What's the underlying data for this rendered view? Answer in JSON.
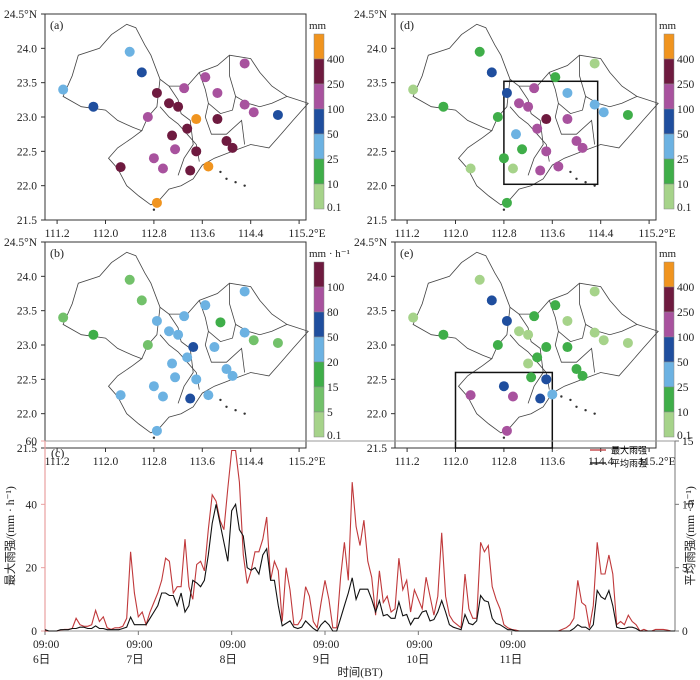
{
  "figure": {
    "map_lat_ticks": [
      "24.5°N",
      "24.0",
      "23.5",
      "23.0",
      "22.5",
      "22.0",
      "21.5"
    ],
    "map_lon_ticks": [
      "111.2",
      "112.0",
      "112.8",
      "113.6",
      "114.4",
      "115.2°E"
    ]
  },
  "colorbars": {
    "total_mm": {
      "unit": "mm",
      "labels": [
        "0.1",
        "10",
        "25",
        "50",
        "100",
        "250",
        "400"
      ],
      "colors": [
        "#a6d38a",
        "#3fae49",
        "#6cb2e2",
        "#1f4e9e",
        "#a8529e",
        "#6e1a3f",
        "#f0941f"
      ]
    },
    "intensity": {
      "unit": "mm · h⁻¹",
      "labels": [
        "0.1",
        "5",
        "15",
        "20",
        "50",
        "80",
        "100"
      ],
      "colors": [
        "#a6d38a",
        "#72c16a",
        "#3fae49",
        "#6cb2e2",
        "#1f4e9e",
        "#a8529e",
        "#6e1a3f"
      ]
    }
  },
  "panels": [
    {
      "id": "a",
      "label": "(a)",
      "colorbar": "total_mm",
      "stations": [
        {
          "lon": 112.4,
          "lat": 23.95,
          "c": 2
        },
        {
          "lon": 112.6,
          "lat": 23.65,
          "c": 3
        },
        {
          "lon": 111.3,
          "lat": 23.4,
          "c": 2
        },
        {
          "lon": 111.8,
          "lat": 23.15,
          "c": 3
        },
        {
          "lon": 112.7,
          "lat": 23.0,
          "c": 4
        },
        {
          "lon": 112.85,
          "lat": 23.35,
          "c": 5
        },
        {
          "lon": 113.05,
          "lat": 23.2,
          "c": 5
        },
        {
          "lon": 113.2,
          "lat": 23.15,
          "c": 5
        },
        {
          "lon": 113.3,
          "lat": 23.42,
          "c": 4
        },
        {
          "lon": 113.65,
          "lat": 23.58,
          "c": 4
        },
        {
          "lon": 113.85,
          "lat": 23.35,
          "c": 4
        },
        {
          "lon": 114.3,
          "lat": 23.78,
          "c": 4
        },
        {
          "lon": 114.3,
          "lat": 23.18,
          "c": 4
        },
        {
          "lon": 114.45,
          "lat": 23.07,
          "c": 4
        },
        {
          "lon": 114.85,
          "lat": 23.03,
          "c": 3
        },
        {
          "lon": 113.5,
          "lat": 22.97,
          "c": 6
        },
        {
          "lon": 113.35,
          "lat": 22.83,
          "c": 5
        },
        {
          "lon": 113.1,
          "lat": 22.73,
          "c": 5
        },
        {
          "lon": 113.15,
          "lat": 22.53,
          "c": 4
        },
        {
          "lon": 113.85,
          "lat": 22.97,
          "c": 5
        },
        {
          "lon": 114.0,
          "lat": 22.65,
          "c": 5
        },
        {
          "lon": 114.1,
          "lat": 22.55,
          "c": 5
        },
        {
          "lon": 113.5,
          "lat": 22.5,
          "c": 5
        },
        {
          "lon": 113.4,
          "lat": 22.22,
          "c": 5
        },
        {
          "lon": 113.7,
          "lat": 22.28,
          "c": 6
        },
        {
          "lon": 112.8,
          "lat": 22.4,
          "c": 4
        },
        {
          "lon": 112.95,
          "lat": 22.25,
          "c": 4
        },
        {
          "lon": 112.25,
          "lat": 22.27,
          "c": 5
        },
        {
          "lon": 112.85,
          "lat": 21.75,
          "c": 6
        }
      ]
    },
    {
      "id": "d",
      "label": "(d)",
      "colorbar": "total_mm",
      "box": {
        "lon": [
          112.8,
          114.35
        ],
        "lat": [
          22.02,
          23.52
        ]
      },
      "stations": [
        {
          "lon": 112.4,
          "lat": 23.95,
          "c": 1
        },
        {
          "lon": 112.6,
          "lat": 23.65,
          "c": 3
        },
        {
          "lon": 111.3,
          "lat": 23.4,
          "c": 0
        },
        {
          "lon": 111.8,
          "lat": 23.15,
          "c": 1
        },
        {
          "lon": 112.7,
          "lat": 23.0,
          "c": 1
        },
        {
          "lon": 112.85,
          "lat": 23.35,
          "c": 3
        },
        {
          "lon": 113.05,
          "lat": 23.2,
          "c": 4
        },
        {
          "lon": 113.2,
          "lat": 23.15,
          "c": 4
        },
        {
          "lon": 113.3,
          "lat": 23.42,
          "c": 4
        },
        {
          "lon": 113.65,
          "lat": 23.58,
          "c": 1
        },
        {
          "lon": 113.85,
          "lat": 23.35,
          "c": 2
        },
        {
          "lon": 114.3,
          "lat": 23.78,
          "c": 0
        },
        {
          "lon": 114.3,
          "lat": 23.18,
          "c": 2
        },
        {
          "lon": 114.45,
          "lat": 23.07,
          "c": 2
        },
        {
          "lon": 114.85,
          "lat": 23.03,
          "c": 1
        },
        {
          "lon": 113.5,
          "lat": 22.97,
          "c": 5
        },
        {
          "lon": 113.35,
          "lat": 22.83,
          "c": 4
        },
        {
          "lon": 113.0,
          "lat": 22.75,
          "c": 2
        },
        {
          "lon": 113.1,
          "lat": 22.53,
          "c": 1
        },
        {
          "lon": 113.85,
          "lat": 22.97,
          "c": 4
        },
        {
          "lon": 114.0,
          "lat": 22.65,
          "c": 4
        },
        {
          "lon": 114.1,
          "lat": 22.55,
          "c": 4
        },
        {
          "lon": 113.5,
          "lat": 22.5,
          "c": 4
        },
        {
          "lon": 113.4,
          "lat": 22.22,
          "c": 4
        },
        {
          "lon": 113.7,
          "lat": 22.28,
          "c": 4
        },
        {
          "lon": 112.8,
          "lat": 22.4,
          "c": 1
        },
        {
          "lon": 112.95,
          "lat": 22.25,
          "c": 0
        },
        {
          "lon": 112.25,
          "lat": 22.25,
          "c": 0
        },
        {
          "lon": 112.85,
          "lat": 21.75,
          "c": 1
        }
      ]
    },
    {
      "id": "b",
      "label": "(b)",
      "colorbar": "intensity",
      "stations": [
        {
          "lon": 112.4,
          "lat": 23.95,
          "c": 1
        },
        {
          "lon": 112.6,
          "lat": 23.65,
          "c": 1
        },
        {
          "lon": 111.3,
          "lat": 23.4,
          "c": 1
        },
        {
          "lon": 111.8,
          "lat": 23.15,
          "c": 2
        },
        {
          "lon": 112.7,
          "lat": 23.0,
          "c": 1
        },
        {
          "lon": 112.85,
          "lat": 23.35,
          "c": 3
        },
        {
          "lon": 113.05,
          "lat": 23.2,
          "c": 3
        },
        {
          "lon": 113.2,
          "lat": 23.15,
          "c": 3
        },
        {
          "lon": 113.3,
          "lat": 23.42,
          "c": 3
        },
        {
          "lon": 113.65,
          "lat": 23.58,
          "c": 3
        },
        {
          "lon": 113.9,
          "lat": 23.33,
          "c": 2
        },
        {
          "lon": 114.3,
          "lat": 23.78,
          "c": 3
        },
        {
          "lon": 114.3,
          "lat": 23.18,
          "c": 3
        },
        {
          "lon": 114.45,
          "lat": 23.07,
          "c": 1
        },
        {
          "lon": 114.85,
          "lat": 23.03,
          "c": 1
        },
        {
          "lon": 113.45,
          "lat": 22.97,
          "c": 4
        },
        {
          "lon": 113.35,
          "lat": 22.82,
          "c": 3
        },
        {
          "lon": 113.1,
          "lat": 22.73,
          "c": 3
        },
        {
          "lon": 113.15,
          "lat": 22.53,
          "c": 3
        },
        {
          "lon": 113.8,
          "lat": 22.97,
          "c": 3
        },
        {
          "lon": 114.0,
          "lat": 22.65,
          "c": 3
        },
        {
          "lon": 114.1,
          "lat": 22.55,
          "c": 3
        },
        {
          "lon": 113.5,
          "lat": 22.5,
          "c": 3
        },
        {
          "lon": 113.4,
          "lat": 22.22,
          "c": 4
        },
        {
          "lon": 113.7,
          "lat": 22.27,
          "c": 3
        },
        {
          "lon": 112.8,
          "lat": 22.4,
          "c": 3
        },
        {
          "lon": 112.95,
          "lat": 22.25,
          "c": 3
        },
        {
          "lon": 112.25,
          "lat": 22.27,
          "c": 3
        },
        {
          "lon": 112.85,
          "lat": 21.75,
          "c": 3
        }
      ]
    },
    {
      "id": "e",
      "label": "(e)",
      "colorbar": "total_mm",
      "box": {
        "lon": [
          112.0,
          113.6
        ],
        "lat": [
          21.5,
          22.6
        ]
      },
      "stations": [
        {
          "lon": 112.4,
          "lat": 23.95,
          "c": 0
        },
        {
          "lon": 112.6,
          "lat": 23.65,
          "c": 3
        },
        {
          "lon": 111.3,
          "lat": 23.4,
          "c": 0
        },
        {
          "lon": 111.8,
          "lat": 23.15,
          "c": 1
        },
        {
          "lon": 112.7,
          "lat": 23.0,
          "c": 1
        },
        {
          "lon": 112.85,
          "lat": 23.35,
          "c": 3
        },
        {
          "lon": 113.05,
          "lat": 23.2,
          "c": 0
        },
        {
          "lon": 113.2,
          "lat": 23.15,
          "c": 0
        },
        {
          "lon": 113.3,
          "lat": 23.42,
          "c": 1
        },
        {
          "lon": 113.65,
          "lat": 23.58,
          "c": 1
        },
        {
          "lon": 113.85,
          "lat": 23.35,
          "c": 0
        },
        {
          "lon": 114.3,
          "lat": 23.78,
          "c": 0
        },
        {
          "lon": 114.3,
          "lat": 23.18,
          "c": 0
        },
        {
          "lon": 114.45,
          "lat": 23.07,
          "c": 0
        },
        {
          "lon": 114.85,
          "lat": 23.03,
          "c": 0
        },
        {
          "lon": 113.5,
          "lat": 22.97,
          "c": 1
        },
        {
          "lon": 113.35,
          "lat": 22.82,
          "c": 1
        },
        {
          "lon": 113.2,
          "lat": 22.73,
          "c": 0
        },
        {
          "lon": 113.25,
          "lat": 22.53,
          "c": 1
        },
        {
          "lon": 113.85,
          "lat": 22.97,
          "c": 1
        },
        {
          "lon": 114.0,
          "lat": 22.65,
          "c": 1
        },
        {
          "lon": 114.1,
          "lat": 22.55,
          "c": 1
        },
        {
          "lon": 113.5,
          "lat": 22.5,
          "c": 3
        },
        {
          "lon": 113.4,
          "lat": 22.22,
          "c": 3
        },
        {
          "lon": 113.6,
          "lat": 22.28,
          "c": 2
        },
        {
          "lon": 112.8,
          "lat": 22.4,
          "c": 3
        },
        {
          "lon": 112.95,
          "lat": 22.25,
          "c": 4
        },
        {
          "lon": 112.25,
          "lat": 22.27,
          "c": 4
        },
        {
          "lon": 112.85,
          "lat": 21.75,
          "c": 4
        }
      ]
    }
  ],
  "chart_data": {
    "type": "line",
    "panel_label": "(c)",
    "xlabel": "时间(BT)",
    "ylabel_left": "最大雨强/(mm · h⁻¹)",
    "ylabel_right": "平均雨强/(mm · h⁻¹)",
    "ylim_left": [
      0,
      60
    ],
    "ylim_right": [
      0,
      15
    ],
    "yticks_left": [
      "0",
      "20",
      "40",
      "60"
    ],
    "yticks_right": [
      "0",
      "5",
      "10",
      "15"
    ],
    "xticks": [
      {
        "time": "09:00",
        "day": "6日"
      },
      {
        "time": "09:00",
        "day": "7日"
      },
      {
        "time": "09:00",
        "day": "8日"
      },
      {
        "time": "09:00",
        "day": "9日"
      },
      {
        "time": "09:00",
        "day": "10日"
      },
      {
        "time": "09:00",
        "day": "11日"
      }
    ],
    "x_hours_total": 162,
    "legend": {
      "position": "top-right",
      "entries": [
        "最大雨强",
        "平均雨强"
      ]
    },
    "series": [
      {
        "name": "最大雨强",
        "axis": "left",
        "color": "#c0393b",
        "values": [
          0,
          0,
          0,
          0,
          0.3,
          0.5,
          0.5,
          0.8,
          4,
          2,
          1.5,
          1.5,
          2,
          6.5,
          3,
          4.5,
          1,
          0.5,
          1,
          1,
          1.5,
          4,
          25,
          12,
          4.5,
          6,
          2,
          6,
          9,
          12,
          16,
          23,
          22,
          12,
          14,
          14,
          29,
          14,
          10,
          21,
          22,
          19,
          32,
          43,
          41,
          35,
          32,
          45,
          57,
          57,
          47,
          24,
          15,
          19,
          25,
          25,
          29,
          36,
          16,
          22,
          19,
          3,
          20,
          13,
          2,
          2,
          4,
          14,
          11,
          3,
          1,
          9,
          16,
          10,
          1,
          1,
          17,
          28,
          16,
          47,
          33,
          27,
          35,
          22,
          17,
          5,
          19,
          9,
          11,
          6,
          7,
          23,
          13,
          16,
          6,
          13,
          10,
          7,
          17,
          11,
          5,
          11,
          31,
          11,
          5,
          3,
          2,
          1,
          18,
          7,
          4,
          4,
          28,
          25,
          27,
          14,
          10,
          7,
          2,
          1,
          0.5,
          0.3,
          0,
          0,
          0,
          0,
          0,
          0,
          0,
          0,
          0,
          0,
          0,
          0.5,
          1,
          2,
          4,
          16,
          9,
          8,
          1,
          8,
          28,
          18,
          18,
          24,
          18,
          2,
          3,
          2,
          5,
          3,
          2,
          0,
          0.5,
          0,
          0,
          0.5,
          0.5,
          0.5,
          0.3,
          0,
          0
        ]
      },
      {
        "name": "平均雨强",
        "axis": "right",
        "color": "#111111",
        "values": [
          0.1,
          0,
          0,
          0,
          0.1,
          0.1,
          0.1,
          0.2,
          0.2,
          0.3,
          0.3,
          0.2,
          0.2,
          0.4,
          0.2,
          0.2,
          0.1,
          0.1,
          0.1,
          0.1,
          0.2,
          0.3,
          1.1,
          0.5,
          0.5,
          0.5,
          0.5,
          1,
          1.5,
          2,
          3,
          3,
          2.8,
          2.8,
          2,
          3,
          1.5,
          2,
          4,
          3.8,
          3.5,
          4,
          6,
          8.5,
          10,
          8.5,
          7,
          5.5,
          9.5,
          10,
          8,
          7.5,
          5,
          4.8,
          5,
          4.5,
          6,
          6.5,
          4,
          4,
          2,
          0.4,
          0.6,
          0.8,
          0.3,
          0.2,
          0.3,
          0.8,
          0.5,
          0.2,
          0,
          0.5,
          0.8,
          0.5,
          0,
          0,
          1,
          2,
          3,
          4.2,
          2.5,
          3.3,
          3.3,
          3.3,
          2.5,
          1.5,
          2.4,
          1.2,
          1.3,
          1,
          1,
          2.3,
          1.2,
          1.3,
          0.5,
          1,
          1,
          1.5,
          1.6,
          0.8,
          0.9,
          1.5,
          2.4,
          1.5,
          0.5,
          0.3,
          0.2,
          0.1,
          1.3,
          0.6,
          0.5,
          0.8,
          2.8,
          2.4,
          2.3,
          1,
          0.6,
          0.5,
          0.3,
          0.1,
          0.1,
          0,
          0,
          0,
          0,
          0,
          0,
          0,
          0,
          0,
          0,
          0,
          0,
          0,
          0,
          0,
          0.2,
          0.5,
          0.3,
          0.3,
          0.1,
          0.5,
          3.2,
          2.7,
          2.5,
          3.2,
          2,
          0.3,
          0.2,
          0.2,
          0.3,
          0.3,
          0.2,
          0,
          0,
          0,
          0,
          0,
          0,
          0,
          0,
          0,
          0
        ]
      }
    ]
  }
}
